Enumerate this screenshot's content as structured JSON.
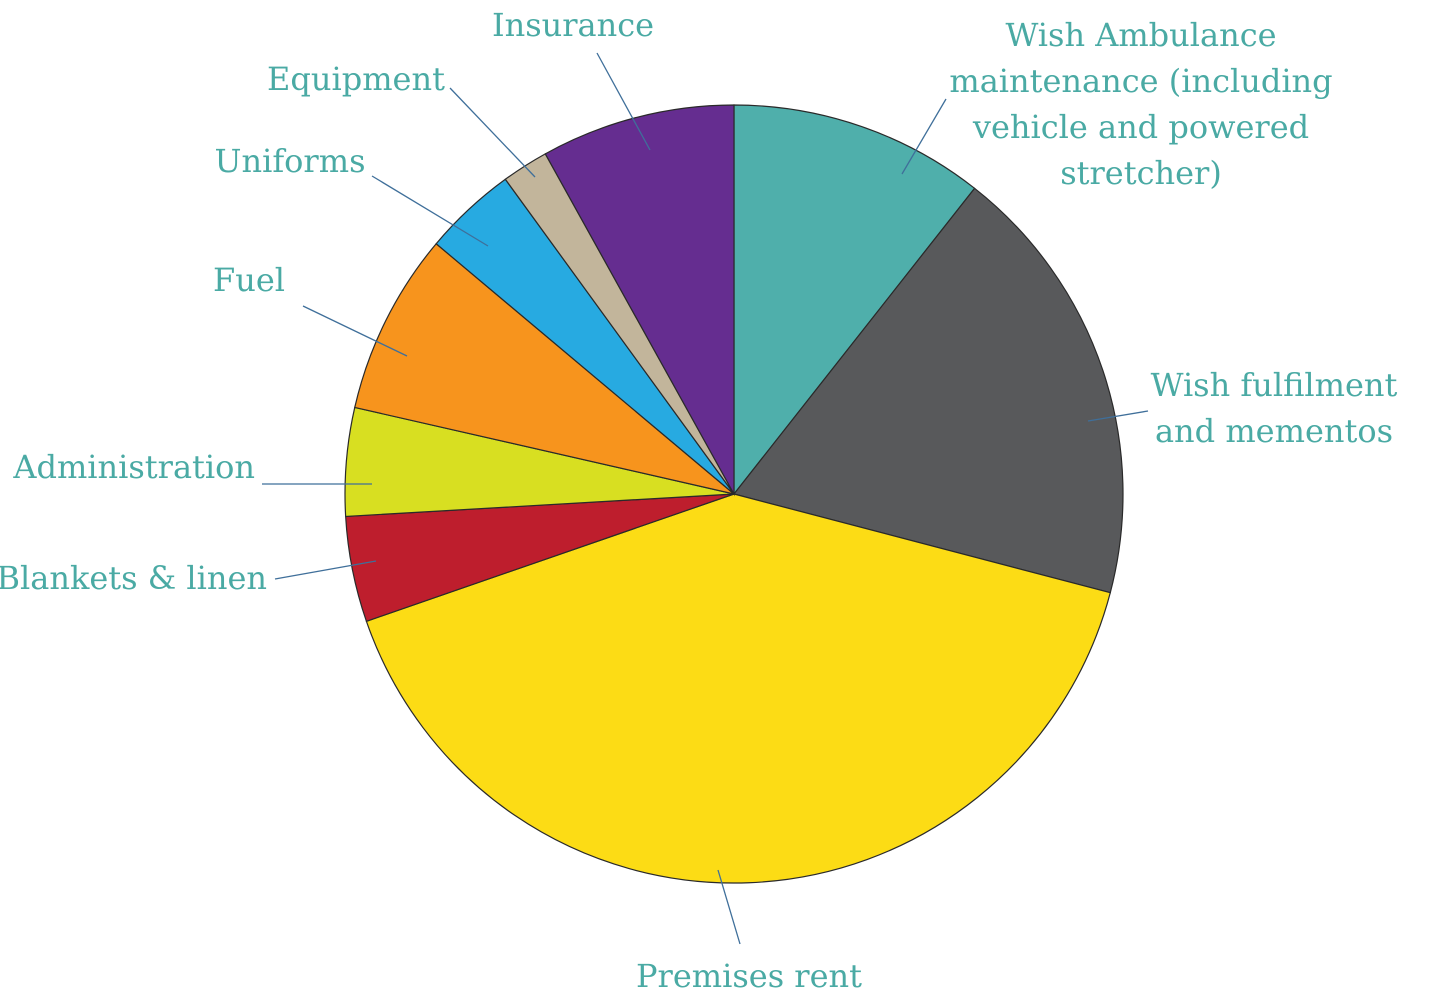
{
  "chart_data": {
    "type": "pie",
    "title": "",
    "label_color": "#4aaaa4",
    "slices": [
      {
        "label": "Wish Ambulance maintenance (including vehicle and powered stretcher)",
        "label_lines": [
          "Wish Ambulance",
          "maintenance (including",
          "vehicle and powered",
          "stretcher)"
        ],
        "value": 10.4,
        "color": "#4fafab"
      },
      {
        "label": "Wish fulfilment and mementos",
        "label_lines": [
          "Wish fulfilment",
          "and mementos"
        ],
        "value": 18.1,
        "color": "#58595b"
      },
      {
        "label": "Premises rent",
        "label_lines": [
          "Premises rent"
        ],
        "value": 39.8,
        "color": "#fcdc15"
      },
      {
        "label": "Blankets & linen",
        "label_lines": [
          "Blankets & linen"
        ],
        "value": 4.3,
        "color": "#be1e2d"
      },
      {
        "label": "Administration",
        "label_lines": [
          "Administration"
        ],
        "value": 4.4,
        "color": "#d8df21"
      },
      {
        "label": "Fuel",
        "label_lines": [
          "Fuel"
        ],
        "value": 7.4,
        "color": "#f7941d"
      },
      {
        "label": "Uniforms",
        "label_lines": [
          "Uniforms"
        ],
        "value": 3.8,
        "color": "#27aae1"
      },
      {
        "label": "Equipment",
        "label_lines": [
          "Equipment"
        ],
        "value": 1.9,
        "color": "#c2b59b"
      },
      {
        "label": "Insurance",
        "label_lines": [
          "Insurance"
        ],
        "value": 7.9,
        "color": "#652d90"
      }
    ]
  }
}
